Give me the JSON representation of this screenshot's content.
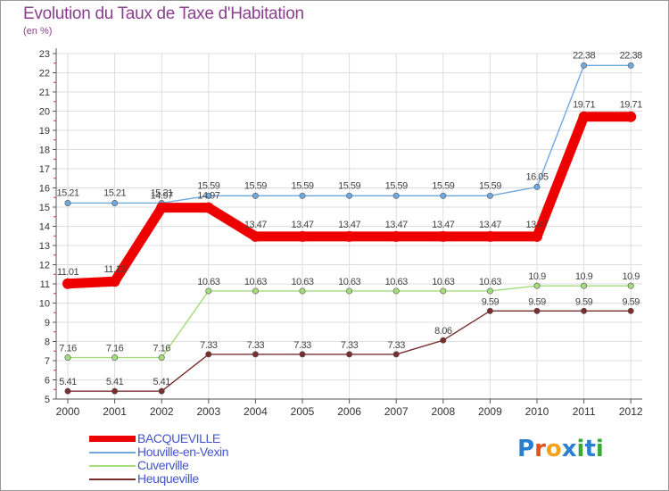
{
  "title": "Evolution du Taux de Taxe d'Habitation",
  "subtitle": "(en %)",
  "logo": {
    "text": "Proxiti",
    "colors": [
      "#2b7fd1",
      "#e2531d",
      "#f2a31b",
      "#2b7fd1",
      "#3aaa35",
      "#2b7fd1",
      "#3aaa35"
    ]
  },
  "chart_data": {
    "type": "line",
    "title": "Evolution du Taux de Taxe d'Habitation",
    "ylabel": "(en %)",
    "xlabel": "",
    "ylim": [
      5,
      23
    ],
    "yticks": [
      "5",
      "6",
      "7",
      "8",
      "9",
      "10",
      "11",
      "12",
      "13",
      "14",
      "15",
      "16",
      "17",
      "18",
      "19",
      "20",
      "21",
      "22",
      "23"
    ],
    "categories": [
      "2000",
      "2001",
      "2002",
      "2003",
      "2004",
      "2005",
      "2006",
      "2007",
      "2008",
      "2009",
      "2010",
      "2011",
      "2012"
    ],
    "grid": true,
    "series": [
      {
        "name": "BACQUEVILLE",
        "color": "#ee0000",
        "width": 11,
        "values": [
          11.01,
          11.13,
          14.97,
          14.97,
          13.47,
          13.47,
          13.47,
          13.47,
          13.47,
          13.47,
          13.47,
          19.71,
          19.71
        ],
        "labels": [
          "11.01",
          "11.13",
          "14.97",
          "14.97",
          "13.47",
          "13.47",
          "13.47",
          "13.47",
          "13.47",
          "13.47",
          "13.47",
          "19.71",
          "19.71"
        ]
      },
      {
        "name": "Houville-en-Vexin",
        "color": "#6fa8dc",
        "width": 1.4,
        "values": [
          15.21,
          15.21,
          15.21,
          15.59,
          15.59,
          15.59,
          15.59,
          15.59,
          15.59,
          15.59,
          16.05,
          22.38,
          22.38
        ],
        "labels": [
          "15.21",
          "15.21",
          "15.21",
          "15.59",
          "15.59",
          "15.59",
          "15.59",
          "15.59",
          "15.59",
          "15.59",
          "16.05",
          "22.38",
          "22.38"
        ]
      },
      {
        "name": "Cuverville",
        "color": "#a4dc7c",
        "width": 1.4,
        "values": [
          7.16,
          7.16,
          7.16,
          10.63,
          10.63,
          10.63,
          10.63,
          10.63,
          10.63,
          10.63,
          10.9,
          10.9,
          10.9
        ],
        "labels": [
          "7.16",
          "7.16",
          "7.16",
          "10.63",
          "10.63",
          "10.63",
          "10.63",
          "10.63",
          "10.63",
          "10.63",
          "10.9",
          "10.9",
          "10.9"
        ]
      },
      {
        "name": "Heuqueville",
        "color": "#7a2e2e",
        "width": 1.4,
        "values": [
          5.41,
          5.41,
          5.41,
          7.33,
          7.33,
          7.33,
          7.33,
          7.33,
          8.06,
          9.59,
          9.59,
          9.59,
          9.59
        ],
        "labels": [
          "5.41",
          "5.41",
          "5.41",
          "7.33",
          "7.33",
          "7.33",
          "7.33",
          "7.33",
          "8.06",
          "9.59",
          "9.59",
          "9.59",
          "9.59"
        ]
      }
    ],
    "legend_position": "bottom-left"
  }
}
